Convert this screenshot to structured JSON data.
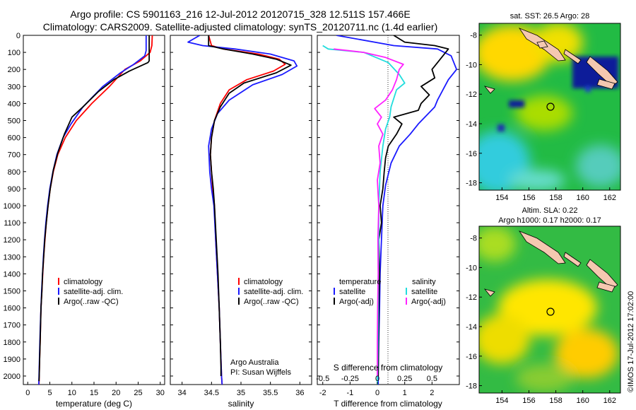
{
  "title": {
    "line1": "Argo profile: CS 5901163_216 12-Jul-2012 20120715_328 12.511S 157.466E",
    "line2": "Climatology: CARS2009. Satellite-adjusted climatology: synTS_20120711.nc (1.4d earlier)"
  },
  "colors": {
    "climatology": "#ff0000",
    "satellite": "#1a1aff",
    "argo": "#000000",
    "sal_sat": "#22dddd",
    "sal_argo": "#ff22ff"
  },
  "chart_data": [
    {
      "type": "line",
      "name": "temperature-panel",
      "xlabel": "temperature (deg C)",
      "xlim": [
        -1,
        31
      ],
      "xticks": [
        0,
        5,
        10,
        15,
        20,
        25,
        30
      ],
      "ylim": [
        0,
        2050
      ],
      "yticks": [
        0,
        100,
        200,
        300,
        400,
        500,
        600,
        700,
        800,
        900,
        1000,
        1100,
        1200,
        1300,
        1400,
        1500,
        1600,
        1700,
        1800,
        1900,
        2000
      ],
      "legend": [
        "climatology",
        "satellite-adj. clim.",
        "Argo(..raw -QC)"
      ],
      "series": [
        {
          "name": "climatology",
          "color": "#ff0000",
          "points": [
            [
              28.2,
              0
            ],
            [
              28.1,
              60
            ],
            [
              27.7,
              100
            ],
            [
              25.5,
              150
            ],
            [
              22,
              200
            ],
            [
              18.5,
              300
            ],
            [
              14.5,
              400
            ],
            [
              11,
              500
            ],
            [
              8.5,
              600
            ],
            [
              6.8,
              700
            ],
            [
              5.8,
              800
            ],
            [
              5.1,
              900
            ],
            [
              4.6,
              1000
            ],
            [
              4.2,
              1100
            ],
            [
              3.9,
              1200
            ],
            [
              3.6,
              1300
            ],
            [
              3.4,
              1400
            ],
            [
              3.2,
              1500
            ],
            [
              3.0,
              1600
            ],
            [
              2.9,
              1700
            ],
            [
              2.8,
              1800
            ],
            [
              2.7,
              1900
            ],
            [
              2.6,
              2000
            ],
            [
              2.55,
              2050
            ]
          ]
        },
        {
          "name": "satellite-adj. clim.",
          "color": "#1a1aff",
          "points": [
            [
              26.8,
              0
            ],
            [
              26.8,
              90
            ],
            [
              26.5,
              120
            ],
            [
              24,
              170
            ],
            [
              21,
              220
            ],
            [
              17,
              300
            ],
            [
              12.5,
              420
            ],
            [
              9.8,
              520
            ],
            [
              8,
              600
            ],
            [
              6.6,
              700
            ],
            [
              5.7,
              800
            ],
            [
              5.0,
              900
            ],
            [
              4.5,
              1000
            ],
            [
              4.1,
              1100
            ],
            [
              3.8,
              1200
            ],
            [
              3.55,
              1300
            ],
            [
              3.35,
              1400
            ],
            [
              3.15,
              1500
            ],
            [
              3.0,
              1600
            ],
            [
              2.85,
              1700
            ],
            [
              2.75,
              1800
            ],
            [
              2.65,
              1900
            ],
            [
              2.55,
              2000
            ],
            [
              2.5,
              2050
            ]
          ]
        },
        {
          "name": "Argo(..raw -QC)",
          "color": "#000000",
          "points": [
            [
              27.5,
              0
            ],
            [
              27.5,
              150
            ],
            [
              27.2,
              160
            ],
            [
              23,
              210
            ],
            [
              19.5,
              260
            ],
            [
              16,
              330
            ],
            [
              12.5,
              420
            ],
            [
              10,
              480
            ],
            [
              8.3,
              580
            ],
            [
              6.8,
              690
            ],
            [
              5.8,
              790
            ],
            [
              5.1,
              900
            ],
            [
              4.6,
              1000
            ],
            [
              4.2,
              1100
            ],
            [
              3.85,
              1200
            ],
            [
              3.6,
              1300
            ],
            [
              3.35,
              1400
            ],
            [
              3.2,
              1500
            ],
            [
              3.0,
              1600
            ],
            [
              2.9,
              1700
            ],
            [
              2.8,
              1800
            ],
            [
              2.7,
              1900
            ],
            [
              2.6,
              2000
            ],
            [
              2.55,
              2030
            ]
          ]
        }
      ]
    },
    {
      "type": "line",
      "name": "salinity-panel",
      "xlabel": "salinity",
      "xlim": [
        33.8,
        36.2
      ],
      "xticks": [
        34,
        34.5,
        35,
        35.5,
        36
      ],
      "ylim": [
        0,
        2050
      ],
      "legend": [
        "climatology",
        "satellite-adj. clim.",
        "Argo(..raw -QC)"
      ],
      "series": [
        {
          "name": "climatology",
          "color": "#ff0000",
          "points": [
            [
              34.45,
              0
            ],
            [
              34.5,
              60
            ],
            [
              34.7,
              80
            ],
            [
              35.3,
              110
            ],
            [
              35.65,
              140
            ],
            [
              35.75,
              170
            ],
            [
              35.55,
              210
            ],
            [
              35.1,
              260
            ],
            [
              34.8,
              320
            ],
            [
              34.65,
              400
            ],
            [
              34.55,
              500
            ],
            [
              34.5,
              600
            ],
            [
              34.48,
              700
            ],
            [
              34.5,
              800
            ],
            [
              34.52,
              900
            ],
            [
              34.55,
              1000
            ],
            [
              34.57,
              1200
            ],
            [
              34.6,
              1400
            ],
            [
              34.63,
              1600
            ],
            [
              34.65,
              1800
            ],
            [
              34.67,
              2000
            ],
            [
              34.68,
              2050
            ]
          ]
        },
        {
          "name": "satellite-adj. clim.",
          "color": "#1a1aff",
          "points": [
            [
              34.3,
              0
            ],
            [
              34.1,
              40
            ],
            [
              34.35,
              60
            ],
            [
              34.9,
              80
            ],
            [
              35.5,
              110
            ],
            [
              35.9,
              150
            ],
            [
              35.95,
              180
            ],
            [
              35.7,
              230
            ],
            [
              35.2,
              290
            ],
            [
              34.8,
              380
            ],
            [
              34.6,
              460
            ],
            [
              34.5,
              550
            ],
            [
              34.45,
              650
            ],
            [
              34.47,
              800
            ],
            [
              34.5,
              900
            ],
            [
              34.54,
              1000
            ],
            [
              34.57,
              1200
            ],
            [
              34.6,
              1400
            ],
            [
              34.63,
              1600
            ],
            [
              34.65,
              1800
            ],
            [
              34.67,
              2000
            ],
            [
              34.68,
              2050
            ]
          ]
        },
        {
          "name": "Argo(..raw -QC)",
          "color": "#000000",
          "points": [
            [
              34.45,
              0
            ],
            [
              34.45,
              60
            ],
            [
              34.7,
              80
            ],
            [
              35.2,
              110
            ],
            [
              35.6,
              140
            ],
            [
              35.85,
              175
            ],
            [
              35.6,
              220
            ],
            [
              35.05,
              280
            ],
            [
              34.8,
              340
            ],
            [
              34.65,
              420
            ],
            [
              34.55,
              500
            ],
            [
              34.5,
              600
            ],
            [
              34.48,
              700
            ],
            [
              34.5,
              800
            ],
            [
              34.53,
              900
            ],
            [
              34.55,
              1000
            ],
            [
              34.58,
              1200
            ],
            [
              34.61,
              1400
            ],
            [
              34.63,
              1600
            ],
            [
              34.65,
              1800
            ],
            [
              34.66,
              1950
            ],
            [
              34.66,
              2000
            ]
          ]
        }
      ]
    },
    {
      "type": "line",
      "name": "difference-panel",
      "xlabel": "T difference from climatology",
      "xlim": [
        -2.2,
        3.0
      ],
      "xticks": [
        -2,
        -1,
        0,
        1,
        2
      ],
      "top_axis_label": "S difference from climatology",
      "top_ticks": [
        "-0.5",
        "-0.25",
        "0",
        "0.25",
        "0.5"
      ],
      "top_tick_positions_T": [
        -2,
        -1,
        0,
        1,
        2
      ],
      "ylim": [
        0,
        2050
      ],
      "legend": [
        "temperature",
        "satellite",
        "Argo(-adj)",
        "salinity",
        "satellite",
        "Argo(-adj)"
      ],
      "series": [
        {
          "name": "T satellite",
          "color": "#1a1aff",
          "points": [
            [
              -1.5,
              0
            ],
            [
              0.6,
              60
            ],
            [
              2.2,
              80
            ],
            [
              2.7,
              120
            ],
            [
              2.9,
              200
            ],
            [
              2.6,
              260
            ],
            [
              2.4,
              320
            ],
            [
              2.2,
              380
            ],
            [
              2.1,
              420
            ],
            [
              1.8,
              470
            ],
            [
              1.5,
              520
            ],
            [
              1.2,
              580
            ],
            [
              0.8,
              650
            ],
            [
              0.5,
              750
            ],
            [
              0.3,
              880
            ],
            [
              0.2,
              1000
            ],
            [
              0.15,
              1200
            ],
            [
              0.1,
              1400
            ],
            [
              0.08,
              1600
            ],
            [
              0.05,
              1800
            ],
            [
              0.03,
              2000
            ],
            [
              0.03,
              2050
            ]
          ]
        },
        {
          "name": "T Argo(-adj)",
          "color": "#000000",
          "points": [
            [
              0.6,
              0
            ],
            [
              1.0,
              40
            ],
            [
              2.1,
              60
            ],
            [
              2.6,
              80
            ],
            [
              2.4,
              120
            ],
            [
              2.2,
              160
            ],
            [
              2.0,
              200
            ],
            [
              2.1,
              250
            ],
            [
              1.6,
              300
            ],
            [
              1.9,
              350
            ],
            [
              1.6,
              400
            ],
            [
              1.5,
              440
            ],
            [
              0.6,
              480
            ],
            [
              0.9,
              520
            ],
            [
              0.7,
              580
            ],
            [
              0.4,
              650
            ],
            [
              0.3,
              720
            ],
            [
              0.25,
              800
            ],
            [
              0.2,
              900
            ],
            [
              0.1,
              1000
            ],
            [
              0.15,
              1100
            ],
            [
              0.05,
              1200
            ],
            [
              0.08,
              1400
            ],
            [
              0.05,
              1600
            ],
            [
              0.04,
              1800
            ],
            [
              0.03,
              2000
            ]
          ]
        },
        {
          "name": "S satellite",
          "color": "#22dddd",
          "points": [
            [
              -2.0,
              60
            ],
            [
              -1.8,
              80
            ],
            [
              -0.5,
              100
            ],
            [
              0.4,
              160
            ],
            [
              0.8,
              230
            ],
            [
              1.0,
              280
            ],
            [
              0.7,
              320
            ],
            [
              0.5,
              420
            ],
            [
              0.45,
              480
            ],
            [
              0.3,
              550
            ],
            [
              0.2,
              650
            ],
            [
              0.1,
              800
            ],
            [
              0.05,
              1000
            ],
            [
              0.05,
              1200
            ],
            [
              0.03,
              1500
            ],
            [
              0.02,
              1800
            ],
            [
              0.0,
              2050
            ]
          ]
        },
        {
          "name": "S Argo(-adj)",
          "color": "#ff22ff",
          "points": [
            [
              -1.6,
              80
            ],
            [
              -0.5,
              100
            ],
            [
              0.3,
              130
            ],
            [
              0.95,
              170
            ],
            [
              0.8,
              200
            ],
            [
              0.7,
              260
            ],
            [
              0.55,
              320
            ],
            [
              0.3,
              380
            ],
            [
              -0.1,
              430
            ],
            [
              0.15,
              480
            ],
            [
              0.0,
              520
            ],
            [
              0.2,
              580
            ],
            [
              0.05,
              650
            ],
            [
              0.1,
              750
            ],
            [
              0.0,
              850
            ],
            [
              0.05,
              1000
            ],
            [
              0.02,
              1200
            ],
            [
              0.03,
              1400
            ],
            [
              0.01,
              1600
            ],
            [
              0.0,
              1800
            ],
            [
              0.0,
              2000
            ]
          ]
        }
      ]
    },
    {
      "type": "heatmap",
      "name": "sst-map",
      "title": "sat. SST: 26.5 Argo: 28",
      "xticks": [
        154,
        156,
        158,
        160,
        162
      ],
      "yticks": [
        -8,
        -10,
        -12,
        -14,
        -16,
        -18
      ],
      "xlim": [
        152.3,
        162.8
      ],
      "ylim": [
        -18.5,
        -7.2
      ],
      "marker": [
        157.4,
        -12.5
      ]
    },
    {
      "type": "heatmap",
      "name": "sla-map",
      "title_line1": "Altim. SLA: 0.22",
      "title_line2": "Argo h1000: 0.17 h2000: 0.17",
      "xticks": [
        154,
        156,
        158,
        160,
        162
      ],
      "yticks": [
        -8,
        -10,
        -12,
        -14,
        -16,
        -18
      ],
      "xlim": [
        152.3,
        162.8
      ],
      "ylim": [
        -18.5,
        -7.2
      ],
      "marker": [
        157.4,
        -12.5
      ]
    }
  ],
  "annotations": {
    "argo_australia": "Argo Australia",
    "pi": "PI: Susan Wijffels",
    "imos_stamp": "©IMOS 17-Jul-2012 17:02:00"
  }
}
